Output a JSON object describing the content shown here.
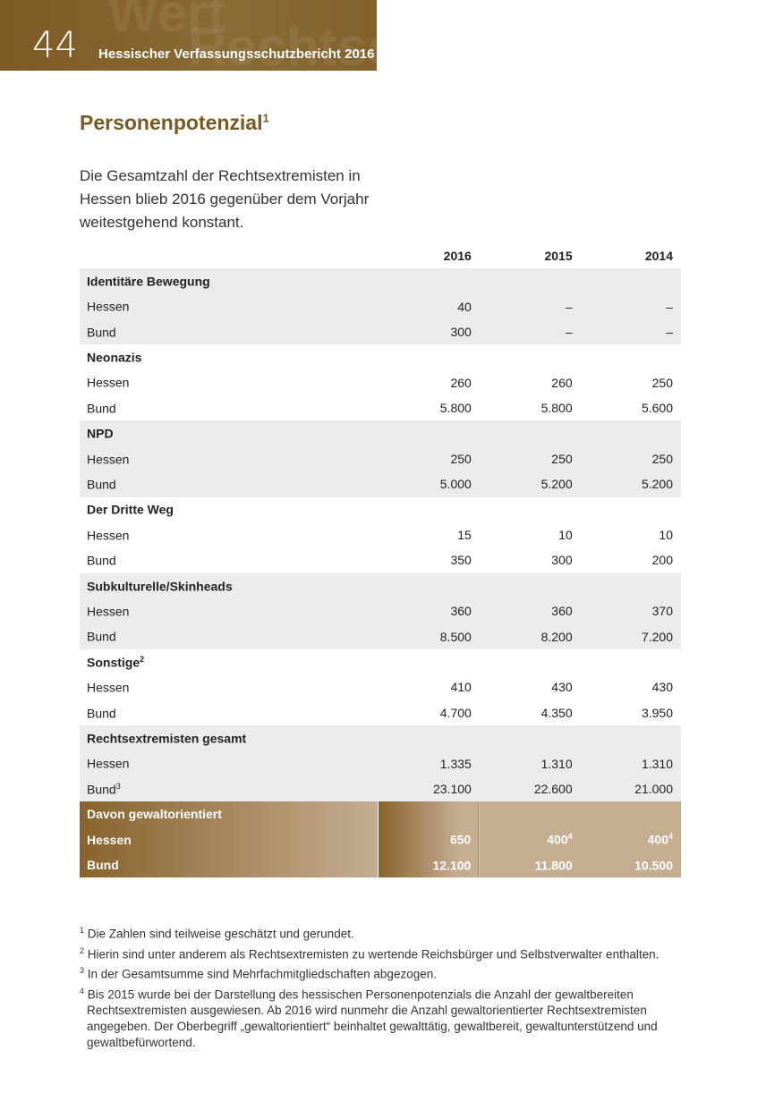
{
  "header": {
    "page_number": "44",
    "title": "Hessischer Verfassungsschutzbericht 2016"
  },
  "heading": {
    "text": "Personenpotenzial",
    "sup": "1"
  },
  "intro": "Die Gesamtzahl der Rechtsextremisten in Hessen blieb 2016 gegenüber dem Vorjahr weitestgehend konstant.",
  "table": {
    "columns": [
      "2016",
      "2015",
      "2014"
    ],
    "groups": [
      {
        "title": "Identitäre Bewegung",
        "sup": "",
        "rows": [
          {
            "label": "Hessen",
            "sup": "",
            "values": [
              "40",
              "–",
              "–"
            ]
          },
          {
            "label": "Bund",
            "sup": "",
            "values": [
              "300",
              "–",
              "–"
            ]
          }
        ]
      },
      {
        "title": "Neonazis",
        "sup": "",
        "rows": [
          {
            "label": "Hessen",
            "sup": "",
            "values": [
              "260",
              "260",
              "250"
            ]
          },
          {
            "label": "Bund",
            "sup": "",
            "values": [
              "5.800",
              "5.800",
              "5.600"
            ]
          }
        ]
      },
      {
        "title": "NPD",
        "sup": "",
        "rows": [
          {
            "label": "Hessen",
            "sup": "",
            "values": [
              "250",
              "250",
              "250"
            ]
          },
          {
            "label": "Bund",
            "sup": "",
            "values": [
              "5.000",
              "5.200",
              "5.200"
            ]
          }
        ]
      },
      {
        "title": "Der Dritte Weg",
        "sup": "",
        "rows": [
          {
            "label": "Hessen",
            "sup": "",
            "values": [
              "15",
              "10",
              "10"
            ]
          },
          {
            "label": "Bund",
            "sup": "",
            "values": [
              "350",
              "300",
              "200"
            ]
          }
        ]
      },
      {
        "title": "Subkulturelle/Skinheads",
        "sup": "",
        "rows": [
          {
            "label": "Hessen",
            "sup": "",
            "values": [
              "360",
              "360",
              "370"
            ]
          },
          {
            "label": "Bund",
            "sup": "",
            "values": [
              "8.500",
              "8.200",
              "7.200"
            ]
          }
        ]
      },
      {
        "title": "Sonstige",
        "sup": "2",
        "rows": [
          {
            "label": "Hessen",
            "sup": "",
            "values": [
              "410",
              "430",
              "430"
            ]
          },
          {
            "label": "Bund",
            "sup": "",
            "values": [
              "4.700",
              "4.350",
              "3.950"
            ]
          }
        ]
      },
      {
        "title": "Rechtsextremisten gesamt",
        "sup": "",
        "rows": [
          {
            "label": "Hessen",
            "sup": "",
            "values": [
              "1.335",
              "1.310",
              "1.310"
            ]
          },
          {
            "label": "Bund",
            "sup": "3",
            "values": [
              "23.100",
              "22.600",
              "21.000"
            ]
          }
        ]
      }
    ],
    "violent": {
      "title": "Davon gewaltorientiert",
      "rows": [
        {
          "label": "Hessen",
          "values": [
            "650",
            "400",
            "400"
          ],
          "sups": [
            "",
            "4",
            "4"
          ]
        },
        {
          "label": "Bund",
          "values": [
            "12.100",
            "11.800",
            "10.500"
          ],
          "sups": [
            "",
            "",
            ""
          ]
        }
      ]
    }
  },
  "footnotes": [
    {
      "num": "1",
      "text": "Die Zahlen sind teilweise geschätzt und gerundet."
    },
    {
      "num": "2",
      "text": "Hierin sind unter anderem als Rechtsextremisten zu wertende Reichsbürger und Selbstverwalter enthalten."
    },
    {
      "num": "3",
      "text": "In der Gesamtsumme sind Mehrfachmitgliedschaften abgezogen."
    },
    {
      "num": "4",
      "text": "Bis 2015 wurde bei der Darstellung des hessischen Personenpotenzials die Anzahl der gewaltbereiten Rechtsextremisten ausgewiesen. Ab 2016 wird nunmehr die Anzahl gewaltorientierter Rechtsextremisten angegeben. Der Oberbegriff „gewaltorientiert“ beinhaltet gewalttätig, gewaltbereit, gewaltunterstützend und gewaltbefürwortend."
    }
  ]
}
